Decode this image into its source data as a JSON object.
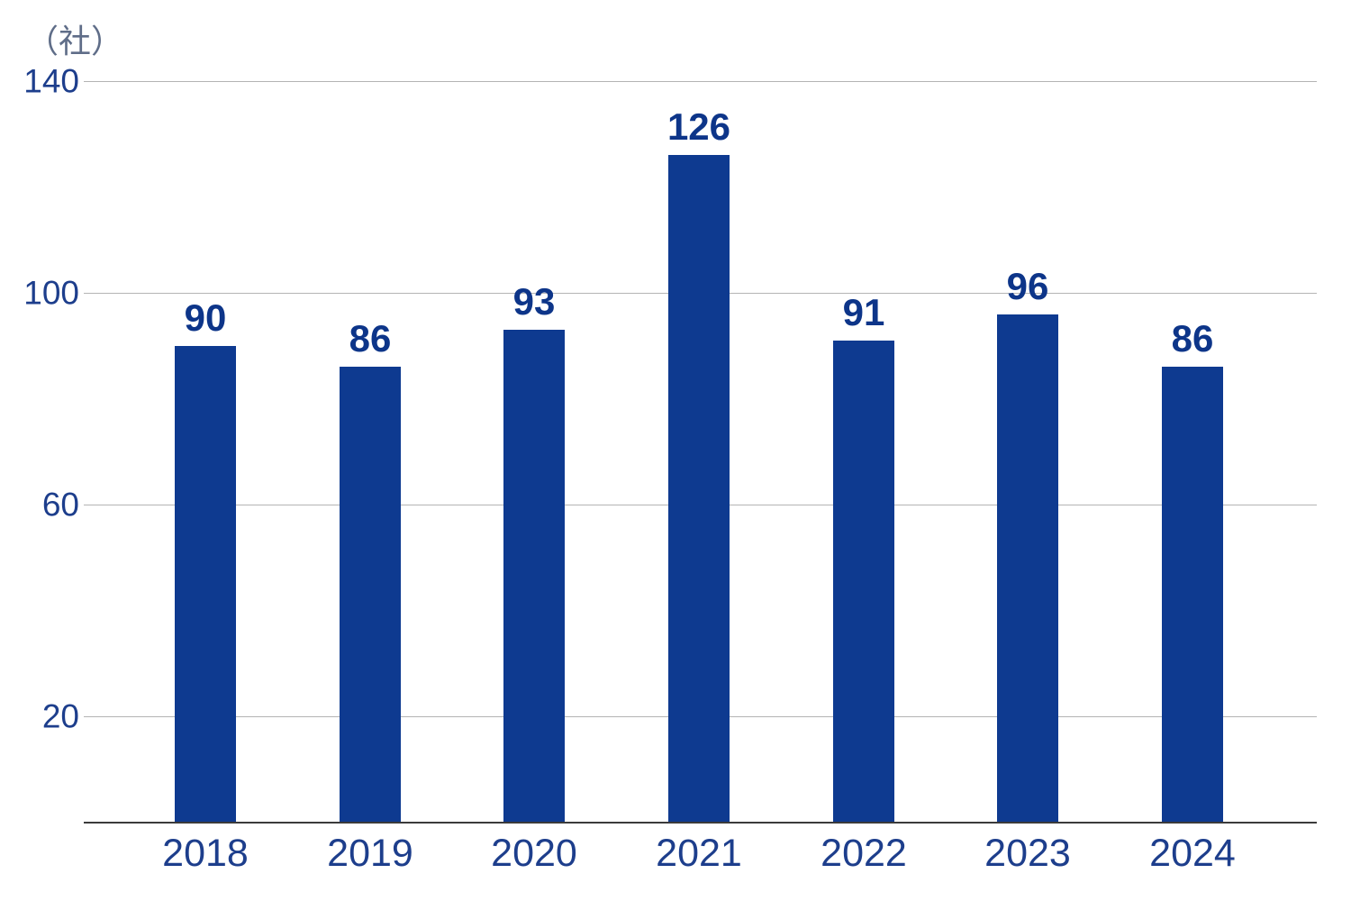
{
  "chart": {
    "unit_label": "（社）",
    "colors": {
      "bar": "#0e3a90",
      "value_label": "#0d3589",
      "tick_label": "#1d3e8c",
      "category_label": "#1d3e8c",
      "unit_label": "#5f6d88",
      "gridline": "#b4b4b4",
      "axis_line": "#3b3b3b",
      "background": "#ffffff"
    }
  },
  "chart_data": {
    "type": "bar",
    "categories": [
      "2018",
      "2019",
      "2020",
      "2021",
      "2022",
      "2023",
      "2024"
    ],
    "values": [
      90,
      86,
      93,
      126,
      91,
      96,
      86
    ],
    "title": "",
    "xlabel": "",
    "ylabel": "（社）",
    "ylim": [
      0,
      140
    ],
    "yticks": [
      140,
      100,
      60,
      20
    ],
    "grid": true,
    "legend": false,
    "value_labels": [
      90,
      86,
      93,
      126,
      91,
      96,
      86
    ]
  }
}
